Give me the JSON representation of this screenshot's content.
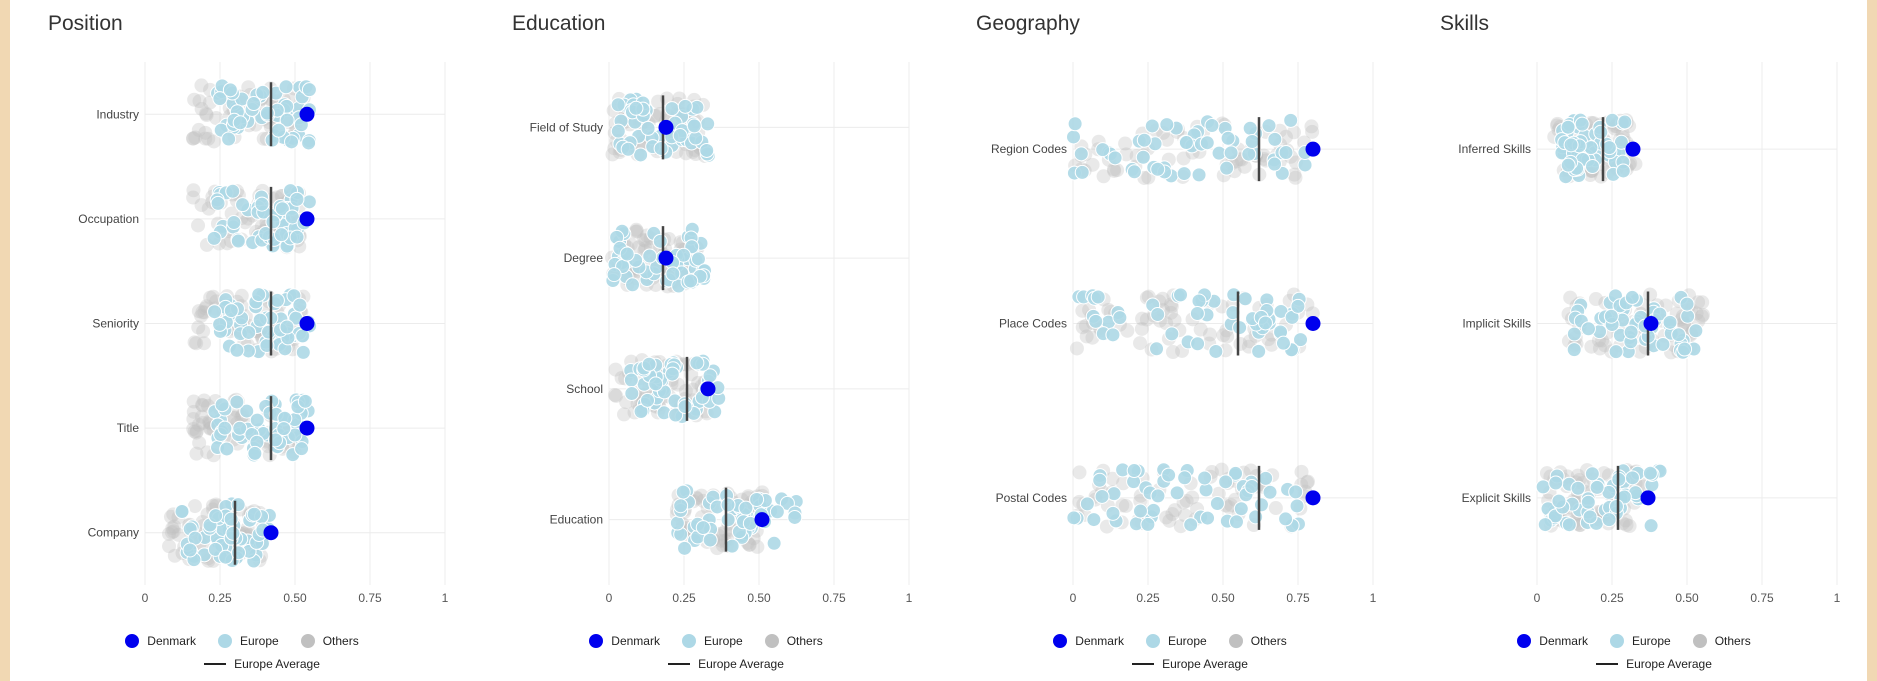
{
  "colors": {
    "denmark": "#0000ee",
    "europe": "#add8e6",
    "others": "#c0c0c0",
    "avg_line": "#444444"
  },
  "legend": {
    "denmark": "Denmark",
    "europe": "Europe",
    "others": "Others",
    "avg": "Europe Average"
  },
  "chart_data": [
    {
      "type": "scatter",
      "title": "Position",
      "xlim": [
        0,
        1
      ],
      "xticks": [
        "0",
        "0.25",
        "0.50",
        "0.75",
        "1"
      ],
      "categories": [
        {
          "name": "Industry",
          "denmark": 0.54,
          "europe_avg": 0.42,
          "europe_range": [
            0.23,
            0.55
          ],
          "others_range": [
            0.16,
            0.53
          ]
        },
        {
          "name": "Occupation",
          "denmark": 0.54,
          "europe_avg": 0.42,
          "europe_range": [
            0.23,
            0.55
          ],
          "others_range": [
            0.16,
            0.53
          ]
        },
        {
          "name": "Seniority",
          "denmark": 0.54,
          "europe_avg": 0.42,
          "europe_range": [
            0.23,
            0.55
          ],
          "others_range": [
            0.16,
            0.53
          ]
        },
        {
          "name": "Title",
          "denmark": 0.54,
          "europe_avg": 0.42,
          "europe_range": [
            0.23,
            0.55
          ],
          "others_range": [
            0.16,
            0.53
          ]
        },
        {
          "name": "Company",
          "denmark": 0.42,
          "europe_avg": 0.3,
          "europe_range": [
            0.12,
            0.42
          ],
          "others_range": [
            0.08,
            0.4
          ]
        }
      ]
    },
    {
      "type": "scatter",
      "title": "Education",
      "xlim": [
        0,
        1
      ],
      "xticks": [
        "0",
        "0.25",
        "0.50",
        "0.75",
        "1"
      ],
      "categories": [
        {
          "name": "Field of Study",
          "denmark": 0.19,
          "europe_avg": 0.18,
          "europe_range": [
            0.02,
            0.34
          ],
          "others_range": [
            0.01,
            0.32
          ]
        },
        {
          "name": "Degree",
          "denmark": 0.19,
          "europe_avg": 0.18,
          "europe_range": [
            0.01,
            0.32
          ],
          "others_range": [
            0.01,
            0.3
          ]
        },
        {
          "name": "School",
          "denmark": 0.33,
          "europe_avg": 0.26,
          "europe_range": [
            0.07,
            0.37
          ],
          "others_range": [
            0.02,
            0.33
          ]
        },
        {
          "name": "Education",
          "denmark": 0.51,
          "europe_avg": 0.39,
          "europe_range": [
            0.22,
            0.63
          ],
          "others_range": [
            0.22,
            0.52
          ]
        }
      ]
    },
    {
      "type": "scatter",
      "title": "Geography",
      "xlim": [
        0,
        1
      ],
      "xticks": [
        "0",
        "0.25",
        "0.50",
        "0.75",
        "1"
      ],
      "categories": [
        {
          "name": "Region Codes",
          "denmark": 0.8,
          "europe_avg": 0.62,
          "europe_range": [
            0.0,
            0.78
          ],
          "others_range": [
            0.0,
            0.8
          ]
        },
        {
          "name": "Place Codes",
          "denmark": 0.8,
          "europe_avg": 0.55,
          "europe_range": [
            0.0,
            0.78
          ],
          "others_range": [
            0.0,
            0.8
          ]
        },
        {
          "name": "Postal Codes",
          "denmark": 0.8,
          "europe_avg": 0.62,
          "europe_range": [
            0.0,
            0.78
          ],
          "others_range": [
            0.0,
            0.8
          ]
        }
      ]
    },
    {
      "type": "scatter",
      "title": "Skills",
      "xlim": [
        0,
        1
      ],
      "xticks": [
        "0",
        "0.25",
        "0.50",
        "0.75",
        "1"
      ],
      "categories": [
        {
          "name": "Inferred Skills",
          "denmark": 0.32,
          "europe_avg": 0.22,
          "europe_range": [
            0.08,
            0.3
          ],
          "others_range": [
            0.05,
            0.33
          ]
        },
        {
          "name": "Implicit Skills",
          "denmark": 0.38,
          "europe_avg": 0.37,
          "europe_range": [
            0.12,
            0.53
          ],
          "others_range": [
            0.1,
            0.56
          ]
        },
        {
          "name": "Explicit Skills",
          "denmark": 0.37,
          "europe_avg": 0.27,
          "europe_range": [
            0.02,
            0.42
          ],
          "others_range": [
            0.01,
            0.36
          ]
        }
      ]
    }
  ]
}
